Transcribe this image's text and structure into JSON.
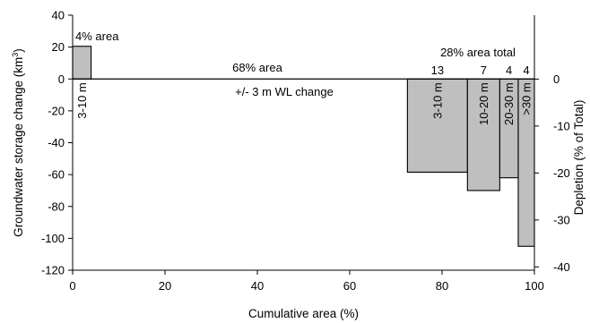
{
  "chart_data": {
    "type": "bar",
    "xlabel": "Cumulative area (%)",
    "ylabel": "Groundwater storage change (km",
    "ylabel_superscript": "3",
    "ylabel_suffix": ")",
    "y2label": "Depletion (% of Total)",
    "xlim": [
      0,
      100
    ],
    "ylim": [
      -120,
      40
    ],
    "y2lim": [
      -40.7,
      13.6
    ],
    "x_ticks": [
      0,
      20,
      40,
      60,
      80,
      100
    ],
    "x_tick_labels": [
      "0",
      "20",
      "40",
      "60",
      "80",
      "100"
    ],
    "y_ticks": [
      40,
      20,
      0,
      -20,
      -40,
      -60,
      -80,
      -100,
      -120
    ],
    "y_tick_labels": [
      "40",
      "20",
      "0",
      "-20",
      "-40",
      "-60",
      "-80",
      "-100",
      "-120"
    ],
    "y2_ticks": [
      0,
      -10,
      -20,
      -30,
      -40
    ],
    "y2_tick_labels": [
      "0",
      "-10",
      "-20",
      "-30",
      "-40"
    ],
    "grid": false,
    "bars": [
      {
        "x0": 0,
        "x1": 4,
        "value": 20.5,
        "label": "3-10 m"
      },
      {
        "x0": 72.5,
        "x1": 85.5,
        "value": -58.5,
        "label": "3-10 m"
      },
      {
        "x0": 85.5,
        "x1": 92.5,
        "value": -70,
        "label": "10-20 m"
      },
      {
        "x0": 92.5,
        "x1": 96.5,
        "value": -62,
        "label": "20-30 m"
      },
      {
        "x0": 96.5,
        "x1": 100,
        "value": -105,
        "label": ">30 m"
      }
    ],
    "annotations": {
      "four_pct": "4% area",
      "sixty_eight_pct": "68% area",
      "wl_change": "+/- 3 m WL change",
      "total_28": "28% area total",
      "counts": [
        "13",
        "7",
        "4",
        "4"
      ]
    }
  }
}
